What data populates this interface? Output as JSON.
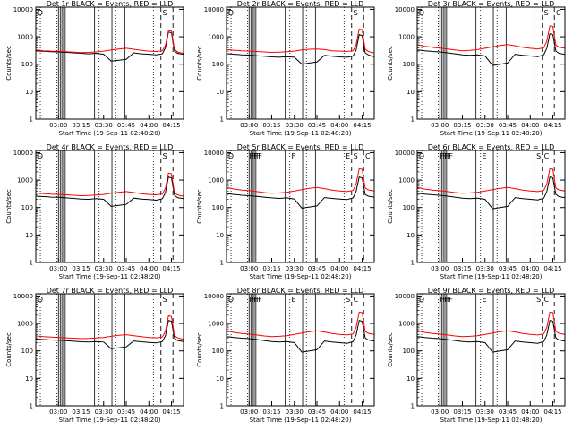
{
  "chart_data": {
    "type": "line",
    "x_ticks": [
      "03:00",
      "03:15",
      "03:30",
      "03:45",
      "04:00",
      "04:15"
    ],
    "y_ticks": [
      "1",
      "10",
      "100",
      "1000",
      "10000"
    ],
    "yscale": "log",
    "ylim": [
      1,
      12000
    ],
    "xlim_minutes_after_0245": [
      0,
      98
    ],
    "ylabel": "Counts/sec",
    "xlabel": "Start Time (19-Sep-11 02:48:20)",
    "series_colors": {
      "events": "#000000",
      "lld": "#ff0000"
    },
    "series": [
      {
        "name": "BLACK = Events"
      },
      {
        "name": "RED = LLD"
      }
    ],
    "x_minutes": [
      0,
      3,
      5,
      8,
      10,
      15,
      20,
      25,
      30,
      35,
      40,
      45,
      50,
      55,
      60,
      65,
      70,
      75,
      80,
      84,
      86,
      88,
      90,
      92,
      94,
      96,
      98
    ],
    "solid_lines_minutes": [
      15,
      16.2,
      17.3,
      18.4,
      19.5,
      39,
      50.5,
      59
    ],
    "dotted_lines_minutes": [
      3,
      14,
      42,
      53,
      78
    ],
    "dashed_lines_minutes": [
      83,
      91
    ],
    "panels": [
      {
        "title": "Det 1r  BLACK = Events, RED = LLD",
        "markers": [
          "D",
          "S"
        ],
        "events": [
          310,
          300,
          295,
          290,
          285,
          280,
          270,
          260,
          250,
          240,
          250,
          230,
          130,
          140,
          150,
          260,
          240,
          230,
          220,
          240,
          400,
          1500,
          1400,
          300,
          250,
          240,
          230
        ],
        "lld": [
          330,
          320,
          310,
          305,
          300,
          295,
          285,
          275,
          265,
          270,
          280,
          300,
          330,
          360,
          380,
          350,
          320,
          300,
          290,
          310,
          500,
          1700,
          1600,
          350,
          280,
          260,
          250
        ]
      },
      {
        "title": "Det 2r  BLACK = Events, RED = LLD",
        "markers": [
          "D",
          "S"
        ],
        "events": [
          240,
          235,
          230,
          225,
          220,
          215,
          205,
          195,
          185,
          180,
          190,
          180,
          100,
          110,
          120,
          210,
          195,
          185,
          180,
          200,
          330,
          1200,
          1100,
          260,
          220,
          200,
          190
        ],
        "lld": [
          340,
          330,
          320,
          315,
          310,
          300,
          290,
          280,
          270,
          275,
          285,
          300,
          330,
          350,
          360,
          340,
          310,
          300,
          290,
          310,
          520,
          1900,
          1800,
          350,
          290,
          270,
          260
        ]
      },
      {
        "title": "Det 3r  BLACK = Events, RED = LLD",
        "markers": [
          "D",
          "S",
          "C"
        ],
        "events": [
          330,
          320,
          310,
          300,
          290,
          280,
          260,
          240,
          220,
          210,
          220,
          200,
          90,
          100,
          110,
          230,
          210,
          200,
          190,
          220,
          380,
          1300,
          1200,
          300,
          250,
          240,
          230
        ],
        "lld": [
          520,
          480,
          450,
          430,
          410,
          390,
          360,
          330,
          310,
          320,
          340,
          380,
          430,
          480,
          520,
          470,
          410,
          380,
          360,
          400,
          700,
          2500,
          2400,
          500,
          420,
          400,
          380
        ]
      },
      {
        "title": "Det 4r  BLACK = Events, RED = LLD",
        "markers": [
          "D",
          "S"
        ],
        "events": [
          260,
          255,
          250,
          245,
          240,
          235,
          225,
          215,
          205,
          200,
          210,
          200,
          110,
          120,
          130,
          220,
          205,
          195,
          185,
          210,
          350,
          1300,
          1200,
          280,
          230,
          220,
          210
        ],
        "lld": [
          340,
          330,
          320,
          315,
          310,
          300,
          290,
          280,
          270,
          275,
          285,
          300,
          330,
          360,
          380,
          350,
          320,
          300,
          290,
          310,
          510,
          1800,
          1700,
          350,
          290,
          270,
          260
        ]
      },
      {
        "title": "Det 5r  BLACK = Events, RED = LLD",
        "markers": [
          "D",
          "F",
          "F",
          "F",
          "F",
          "F",
          "F",
          "E",
          "S",
          "C"
        ],
        "events": [
          320,
          310,
          300,
          290,
          280,
          270,
          255,
          240,
          225,
          215,
          225,
          205,
          95,
          105,
          115,
          230,
          215,
          205,
          195,
          225,
          390,
          1300,
          1200,
          300,
          260,
          250,
          240
        ],
        "lld": [
          540,
          500,
          470,
          450,
          430,
          410,
          380,
          350,
          330,
          340,
          360,
          400,
          450,
          500,
          540,
          490,
          430,
          400,
          380,
          420,
          720,
          2600,
          2500,
          520,
          440,
          420,
          400
        ]
      },
      {
        "title": "Det 6r  BLACK = Events, RED = LLD",
        "markers": [
          "D",
          "F",
          "F",
          "F",
          "F",
          "F",
          "E",
          "S",
          "C"
        ],
        "events": [
          330,
          320,
          310,
          300,
          290,
          280,
          260,
          240,
          220,
          210,
          220,
          200,
          90,
          100,
          110,
          230,
          210,
          200,
          190,
          220,
          380,
          1300,
          1200,
          300,
          250,
          240,
          230
        ],
        "lld": [
          540,
          500,
          470,
          450,
          430,
          410,
          380,
          350,
          330,
          340,
          360,
          400,
          450,
          500,
          540,
          490,
          430,
          400,
          380,
          420,
          720,
          2600,
          2500,
          520,
          440,
          420,
          400
        ]
      },
      {
        "title": "Det 7r  BLACK = Events, RED = LLD",
        "markers": [
          "D",
          "S"
        ],
        "events": [
          270,
          265,
          260,
          255,
          250,
          245,
          235,
          225,
          215,
          210,
          220,
          210,
          120,
          130,
          140,
          230,
          215,
          205,
          195,
          220,
          360,
          1300,
          1200,
          290,
          240,
          230,
          220
        ],
        "lld": [
          350,
          340,
          330,
          325,
          320,
          310,
          300,
          290,
          280,
          285,
          295,
          310,
          340,
          370,
          390,
          360,
          330,
          310,
          300,
          320,
          530,
          1900,
          1800,
          360,
          300,
          280,
          270
        ]
      },
      {
        "title": "Det 8r  BLACK = Events, RED = LLD",
        "markers": [
          "D",
          "F",
          "F",
          "F",
          "F",
          "F",
          "E",
          "S",
          "C"
        ],
        "events": [
          330,
          320,
          310,
          300,
          290,
          280,
          260,
          240,
          220,
          210,
          220,
          200,
          90,
          100,
          110,
          230,
          210,
          200,
          190,
          220,
          380,
          1300,
          1200,
          300,
          250,
          240,
          230
        ],
        "lld": [
          540,
          500,
          470,
          450,
          430,
          410,
          380,
          350,
          330,
          340,
          360,
          400,
          450,
          500,
          540,
          490,
          430,
          400,
          380,
          420,
          720,
          2600,
          2500,
          520,
          440,
          420,
          400
        ]
      },
      {
        "title": "Det 9r  BLACK = Events, RED = LLD",
        "markers": [
          "D",
          "F",
          "F",
          "F",
          "F",
          "F",
          "E",
          "S",
          "C"
        ],
        "events": [
          330,
          320,
          310,
          300,
          290,
          280,
          260,
          240,
          220,
          210,
          220,
          200,
          90,
          100,
          110,
          230,
          210,
          200,
          190,
          220,
          380,
          1300,
          1200,
          300,
          250,
          240,
          230
        ],
        "lld": [
          540,
          500,
          470,
          450,
          430,
          410,
          380,
          350,
          330,
          340,
          360,
          400,
          450,
          500,
          540,
          490,
          430,
          400,
          380,
          420,
          720,
          2600,
          2500,
          520,
          440,
          420,
          400
        ]
      }
    ]
  }
}
